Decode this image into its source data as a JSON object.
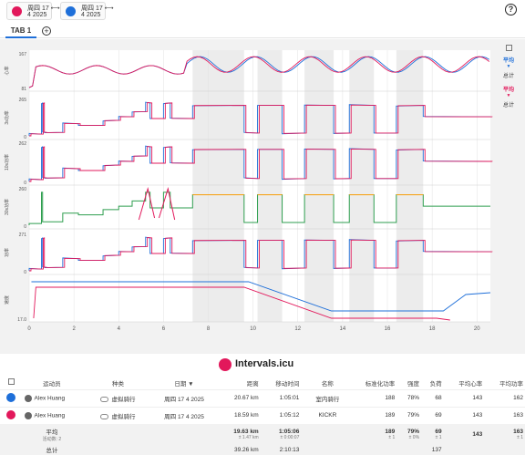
{
  "header": {
    "chips": [
      {
        "color": "#e2185b",
        "line1": "周四 17 ⟷",
        "line2": "4 2025"
      },
      {
        "color": "#1e6fd9",
        "line1": "周四 17 ⟷",
        "line2": "4 2025"
      }
    ],
    "help": "?"
  },
  "tabs": {
    "active": "TAB 1",
    "add": "+"
  },
  "chart_data": {
    "type": "line",
    "series": [
      {
        "name": "",
        "color": "#1e6fd9"
      },
      {
        "name": "",
        "color": "#e2185b"
      }
    ],
    "x_ticks": [
      "0",
      "2",
      "4",
      "6",
      "8",
      "10",
      "12",
      "14",
      "16",
      "18",
      "20"
    ],
    "xlim": [
      0,
      20.6
    ],
    "panels": [
      {
        "ylabel": "心率",
        "ymax": "167",
        "ymin": "81"
      },
      {
        "ylabel": "3s功率",
        "ymax": "265",
        "ymin": "0"
      },
      {
        "ylabel": "10s功率",
        "ymax": "262",
        "ymin": "0"
      },
      {
        "ylabel": "30s功率",
        "ymax": "260",
        "ymin": "0"
      },
      {
        "ylabel": "功率",
        "ymax": "271",
        "ymin": "0"
      },
      {
        "ylabel": "速度",
        "ymax": "",
        "ymin": "17.0"
      }
    ]
  },
  "side": {
    "avg_blue": "平均",
    "total_blue": "总计",
    "avg_pink": "平均",
    "total_pink": "总计"
  },
  "brand": {
    "name": "Intervals.icu"
  },
  "table": {
    "headers": {
      "athlete": "运动员",
      "type": "种类",
      "date": "日期 ▼",
      "distance": "距离",
      "moving_time": "移动时间",
      "name": "名称",
      "np": "标准化功率",
      "intensity": "强度",
      "load": "负荷",
      "avg_hr": "平均心率",
      "max_hr": "平均功率"
    },
    "rows": [
      {
        "dot": "#1e6fd9",
        "athlete": "Alex Huang",
        "type": "虚拟骑行",
        "date": "周四 17 4 2025",
        "distance": "20.67 km",
        "moving_time": "1:05:01",
        "name": "室内骑行",
        "np": "188",
        "intensity": "78%",
        "load": "68",
        "avg_hr": "143",
        "max_hr": "162"
      },
      {
        "dot": "#e2185b",
        "athlete": "Alex Huang",
        "type": "虚拟骑行",
        "date": "周四 17 4 2025",
        "distance": "18.59 km",
        "moving_time": "1:05:12",
        "name": "KICKR",
        "np": "189",
        "intensity": "79%",
        "load": "69",
        "avg_hr": "143",
        "max_hr": "163"
      }
    ],
    "avg": {
      "label": "平均",
      "count_label": "活动数: 2",
      "distance": "19.63 km",
      "distance_sub": "± 1.47 km",
      "moving_time": "1:05:06",
      "moving_time_sub": "± 0:00:07",
      "np": "189",
      "np_sub": "± 1",
      "intensity": "79%",
      "intensity_sub": "± 0%",
      "load": "69",
      "load_sub": "± 1",
      "avg_hr": "143",
      "max_hr": "163",
      "max_hr_sub": "± 1"
    },
    "total": {
      "label": "总计",
      "distance": "39.26 km",
      "moving_time": "2:10:13",
      "load": "137"
    }
  }
}
